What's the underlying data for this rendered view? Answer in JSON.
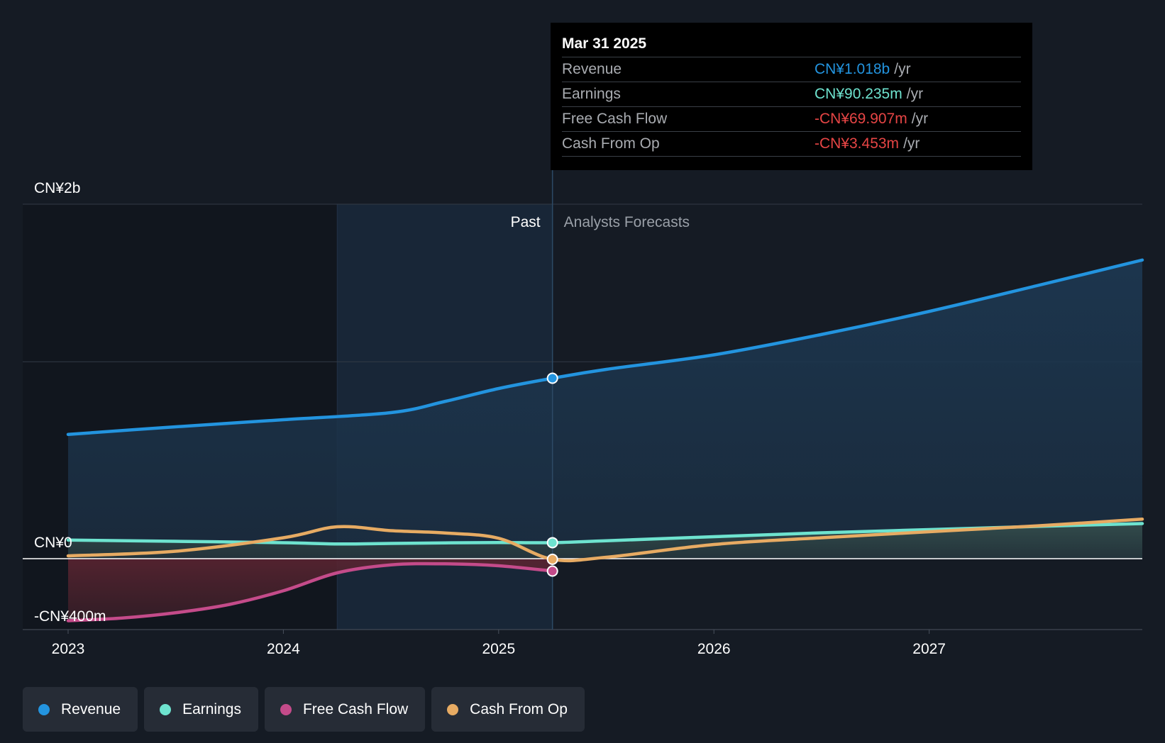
{
  "chart_data": {
    "type": "line",
    "title": "",
    "xlabel": "",
    "ylabel": "",
    "x_ticks": [
      "2023",
      "2024",
      "2025",
      "2026",
      "2027"
    ],
    "x_range": [
      2023.0,
      2027.99
    ],
    "ylim": [
      -400,
      2000
    ],
    "y_ticks": [
      {
        "value": 2000,
        "label": "CN¥2b"
      },
      {
        "value": 0,
        "label": "CN¥0"
      },
      {
        "value": -400,
        "label": "-CN¥400m"
      }
    ],
    "gridlines": [
      2000,
      1111
    ],
    "past_label": "Past",
    "forecast_label": "Analysts Forecasts",
    "past_boundary_x": 2025.25,
    "past_shade_start_x": 2024.25,
    "series": [
      {
        "name": "Revenue",
        "color": "#2394df",
        "fill": true,
        "points": [
          [
            2023.0,
            701
          ],
          [
            2023.5,
            744
          ],
          [
            2024.0,
            784
          ],
          [
            2024.5,
            824
          ],
          [
            2024.75,
            887
          ],
          [
            2025.0,
            960
          ],
          [
            2025.25,
            1018
          ],
          [
            2025.5,
            1068
          ],
          [
            2026.0,
            1150
          ],
          [
            2026.5,
            1265
          ],
          [
            2027.0,
            1395
          ],
          [
            2027.5,
            1540
          ],
          [
            2027.99,
            1685
          ]
        ]
      },
      {
        "name": "Earnings",
        "color": "#6ee3cf",
        "fill": false,
        "points": [
          [
            2023.0,
            105
          ],
          [
            2023.5,
            98
          ],
          [
            2024.0,
            90
          ],
          [
            2024.25,
            83
          ],
          [
            2024.5,
            86
          ],
          [
            2024.75,
            89
          ],
          [
            2025.0,
            91
          ],
          [
            2025.25,
            90.235
          ],
          [
            2025.5,
            101
          ],
          [
            2026.0,
            124
          ],
          [
            2026.5,
            146
          ],
          [
            2027.0,
            164
          ],
          [
            2027.5,
            182
          ],
          [
            2027.99,
            198
          ]
        ]
      },
      {
        "name": "Free Cash Flow",
        "color": "#c44b8a",
        "fill": true,
        "points": [
          [
            2023.0,
            -350
          ],
          [
            2023.25,
            -335
          ],
          [
            2023.5,
            -305
          ],
          [
            2023.75,
            -258
          ],
          [
            2024.0,
            -181
          ],
          [
            2024.25,
            -80
          ],
          [
            2024.5,
            -35
          ],
          [
            2024.75,
            -29
          ],
          [
            2025.0,
            -40
          ],
          [
            2025.25,
            -69.907
          ]
        ]
      },
      {
        "name": "Cash From Op",
        "color": "#e7ab63",
        "fill": false,
        "points": [
          [
            2023.0,
            16
          ],
          [
            2023.5,
            42
          ],
          [
            2024.0,
            118
          ],
          [
            2024.25,
            180
          ],
          [
            2024.5,
            158
          ],
          [
            2024.75,
            145
          ],
          [
            2025.0,
            115
          ],
          [
            2025.25,
            -3.453
          ],
          [
            2025.5,
            8
          ],
          [
            2026.0,
            80
          ],
          [
            2026.5,
            118
          ],
          [
            2027.0,
            152
          ],
          [
            2027.5,
            185
          ],
          [
            2027.99,
            223
          ]
        ]
      }
    ],
    "highlight": {
      "x": 2025.25,
      "revenue": 1018,
      "earnings": 90.235,
      "free_cash_flow": -69.907,
      "cash_from_op": -3.453
    }
  },
  "tooltip": {
    "date": "Mar 31 2025",
    "rows": [
      {
        "label": "Revenue",
        "value": "CN¥1.018b",
        "unit": "/yr",
        "color": "#2394df"
      },
      {
        "label": "Earnings",
        "value": "CN¥90.235m",
        "unit": "/yr",
        "color": "#6ee3cf"
      },
      {
        "label": "Free Cash Flow",
        "value": "-CN¥69.907m",
        "unit": "/yr",
        "color": "#e64545"
      },
      {
        "label": "Cash From Op",
        "value": "-CN¥3.453m",
        "unit": "/yr",
        "color": "#e64545"
      }
    ]
  },
  "legend": [
    {
      "label": "Revenue",
      "color": "#2394df"
    },
    {
      "label": "Earnings",
      "color": "#6ee3cf"
    },
    {
      "label": "Free Cash Flow",
      "color": "#c44b8a"
    },
    {
      "label": "Cash From Op",
      "color": "#e7ab63"
    }
  ]
}
